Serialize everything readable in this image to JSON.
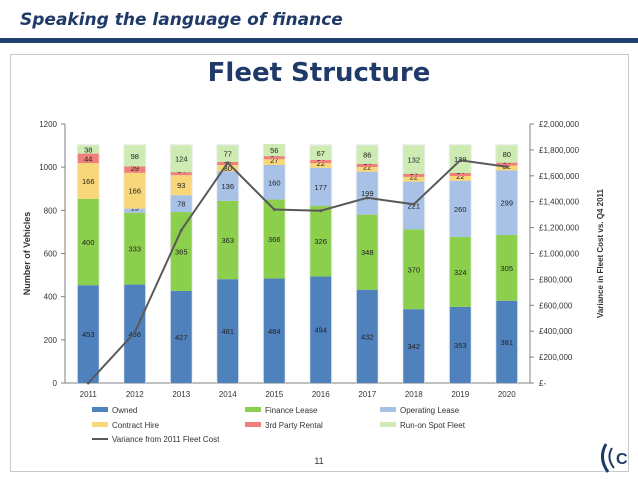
{
  "header": {
    "title": "Speaking the language of finance"
  },
  "slide": {
    "title": "Fleet Structure",
    "page_number": "11"
  },
  "colors": {
    "owned": "#4f81bd",
    "finance_lease": "#8ccf4d",
    "operating_lease": "#a7c2e6",
    "contract_hire": "#f8d67a",
    "third_party_rental": "#ef7f7a",
    "run_on_spot_fleet": "#cdebb3",
    "variance_line": "#595959",
    "header_blue": "#1f3a68"
  },
  "chart_data": {
    "type": "bar",
    "stacked": true,
    "categories": [
      "2011",
      "2012",
      "2013",
      "2014",
      "2015",
      "2016",
      "2017",
      "2018",
      "2019",
      "2020"
    ],
    "ylabel": "Number of Vehicles",
    "ylabel_right": "Variance in Fleet Cost vs. Q4 2011",
    "ylim": [
      0,
      1200
    ],
    "yticks": [
      "0",
      "200",
      "400",
      "600",
      "800",
      "1000",
      "1200"
    ],
    "y2lim": [
      0,
      2000000
    ],
    "y2ticks": [
      "£-",
      "£200,000",
      "£400,000",
      "£600,000",
      "£800,000",
      "£1,000,000",
      "£1,200,000",
      "£1,400,000",
      "£1,600,000",
      "£1,800,000",
      "£2,000,000"
    ],
    "grid": false,
    "legend_position": "bottom",
    "series": [
      {
        "name": "Owned",
        "color": "#4f81bd",
        "values": [
          453,
          456,
          427,
          481,
          484,
          494,
          432,
          342,
          353,
          381
        ],
        "labels": [
          "453",
          "456",
          "427",
          "481",
          "484",
          "494",
          "432",
          "342",
          "353",
          "381"
        ]
      },
      {
        "name": "Finance Lease",
        "color": "#8ccf4d",
        "values": [
          400,
          333,
          365,
          363,
          366,
          326,
          348,
          370,
          324,
          305
        ],
        "labels": [
          "400",
          "333",
          "365",
          "363",
          "366",
          "326",
          "348",
          "370",
          "324",
          "305"
        ]
      },
      {
        "name": "Operating Lease",
        "color": "#a7c2e6",
        "values": [
          0,
          19,
          78,
          136,
          160,
          177,
          199,
          221,
          260,
          299
        ],
        "labels": [
          "0",
          "19",
          "78",
          "136",
          "160",
          "177",
          "199",
          "221",
          "260",
          "299"
        ]
      },
      {
        "name": "Contract Hire",
        "color": "#f8d67a",
        "values": [
          166,
          166,
          93,
          30,
          27,
          22,
          22,
          22,
          22,
          22
        ],
        "labels": [
          "166",
          "166",
          "93",
          "30",
          "27",
          "22",
          "22",
          "22",
          "22",
          "22"
        ]
      },
      {
        "name": "3rd Party Rental",
        "color": "#ef7f7a",
        "values": [
          44,
          29,
          14,
          14,
          14,
          14,
          14,
          14,
          14,
          14
        ],
        "labels": [
          "44",
          "29",
          "14",
          "14",
          "14",
          "14",
          "14",
          "14",
          "14",
          "14"
        ]
      },
      {
        "name": "Run-on Spot Fleet",
        "color": "#cdebb3",
        "values": [
          38,
          98,
          124,
          77,
          56,
          67,
          86,
          132,
          129,
          80
        ],
        "labels": [
          "38",
          "98",
          "124",
          "77",
          "56",
          "67",
          "86",
          "132",
          "129",
          "80"
        ]
      }
    ],
    "line_series": {
      "name": "Variance from 2011 Fleet Cost",
      "color": "#595959",
      "axis": "right",
      "values": [
        0,
        390000,
        1180000,
        1700000,
        1340000,
        1330000,
        1430000,
        1380000,
        1720000,
        1670000
      ]
    }
  }
}
